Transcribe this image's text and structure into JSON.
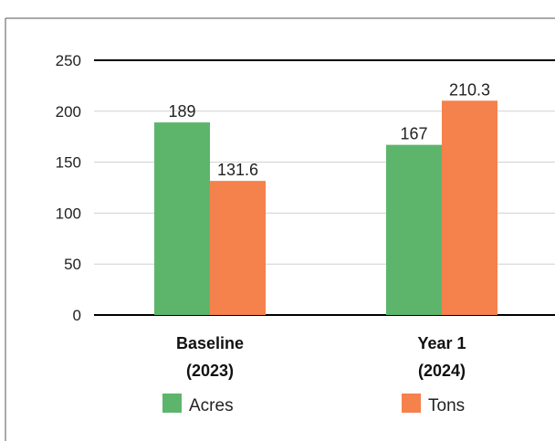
{
  "chart_data": {
    "type": "bar",
    "title": "",
    "xlabel": "",
    "ylabel": "",
    "categories": [
      [
        "Baseline",
        "(2023)"
      ],
      [
        "Year 1",
        "(2024)"
      ]
    ],
    "series": [
      {
        "name": "Acres",
        "values": [
          189,
          167
        ],
        "color": "#5db56b"
      },
      {
        "name": "Tons",
        "values": [
          131.6,
          210.3
        ],
        "color": "#f5814c"
      }
    ],
    "value_labels": [
      [
        "189",
        "131.6"
      ],
      [
        "167",
        "210.3"
      ]
    ],
    "ylim": [
      0,
      250
    ],
    "yticks": [
      0,
      50,
      100,
      150,
      200,
      250
    ],
    "grid": true,
    "legend_position": "bottom"
  }
}
